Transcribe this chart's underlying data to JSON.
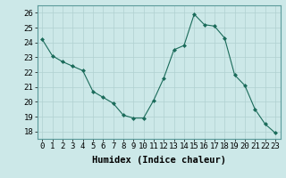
{
  "x": [
    0,
    1,
    2,
    3,
    4,
    5,
    6,
    7,
    8,
    9,
    10,
    11,
    12,
    13,
    14,
    15,
    16,
    17,
    18,
    19,
    20,
    21,
    22,
    23
  ],
  "y": [
    24.2,
    23.1,
    22.7,
    22.4,
    22.1,
    20.7,
    20.3,
    19.9,
    19.1,
    18.9,
    18.9,
    20.1,
    21.6,
    23.5,
    23.8,
    25.9,
    25.2,
    25.1,
    24.3,
    21.8,
    21.1,
    19.5,
    18.5,
    17.9
  ],
  "line_color": "#1a6b5a",
  "marker_color": "#1a6b5a",
  "bg_color": "#cce8e8",
  "grid_color": "#b0d0d0",
  "xlabel": "Humidex (Indice chaleur)",
  "xlim": [
    -0.5,
    23.5
  ],
  "ylim": [
    17.5,
    26.5
  ],
  "yticks": [
    18,
    19,
    20,
    21,
    22,
    23,
    24,
    25,
    26
  ],
  "xticks": [
    0,
    1,
    2,
    3,
    4,
    5,
    6,
    7,
    8,
    9,
    10,
    11,
    12,
    13,
    14,
    15,
    16,
    17,
    18,
    19,
    20,
    21,
    22,
    23
  ],
  "tick_label_fontsize": 6.5,
  "xlabel_fontsize": 7.5
}
